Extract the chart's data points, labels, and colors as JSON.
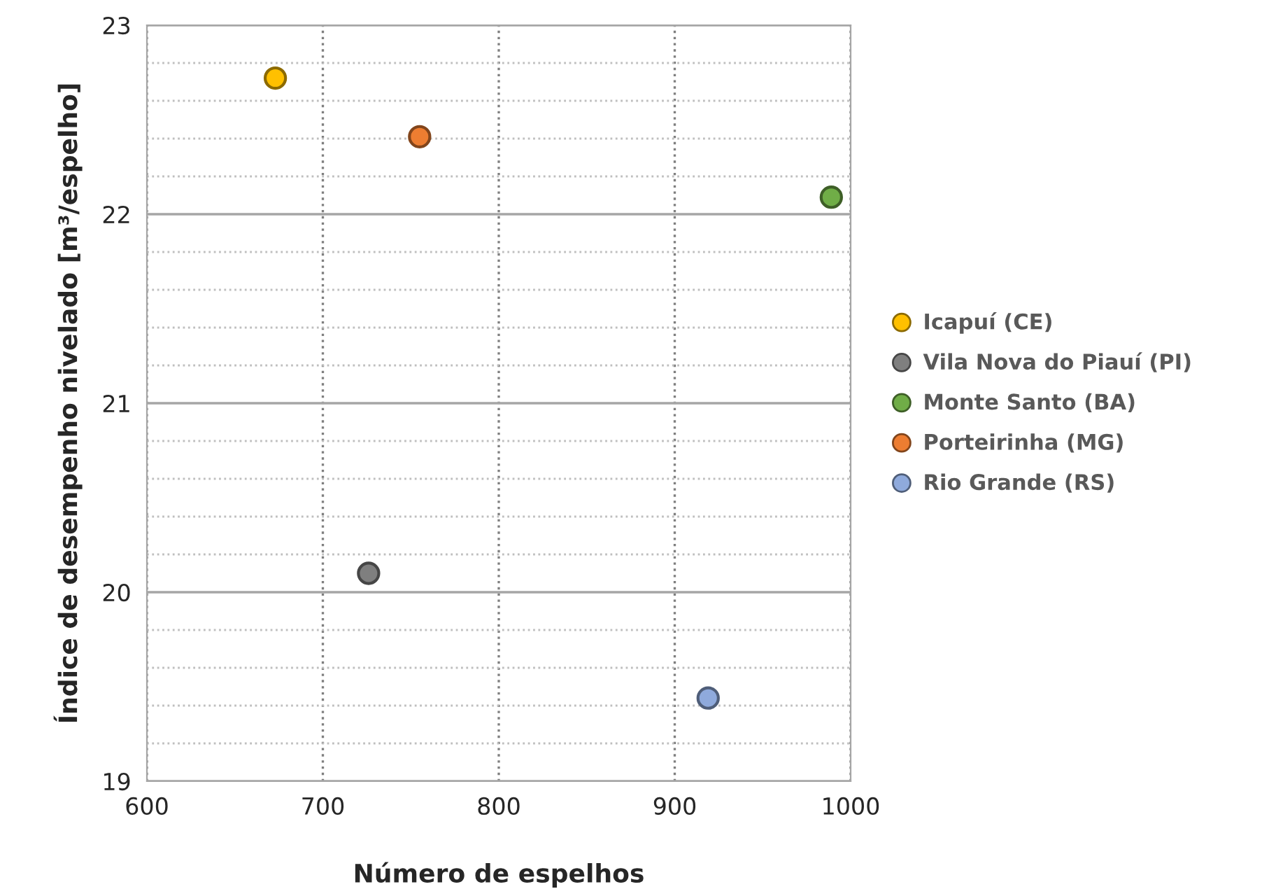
{
  "chart_data": {
    "type": "scatter",
    "xlabel": "Número de espelhos",
    "ylabel": "Índice de desempenho nivelado [m³/espelho]",
    "xlim": [
      600,
      1000
    ],
    "xticks": [
      600,
      700,
      800,
      900,
      1000
    ],
    "ylim": [
      19,
      23
    ],
    "yticks": [
      19,
      20,
      21,
      22,
      23
    ],
    "grid": true,
    "legend": "right",
    "marker": "circle",
    "series": [
      {
        "name": "Icapuí (CE)",
        "color": "#ffc000",
        "x": [
          673
        ],
        "values": [
          22.72
        ]
      },
      {
        "name": "Vila Nova do Piauí (PI)",
        "color": "#7f7f7f",
        "x": [
          726
        ],
        "values": [
          20.1
        ]
      },
      {
        "name": "Monte Santo (BA)",
        "color": "#70ad47",
        "x": [
          989
        ],
        "values": [
          22.09
        ]
      },
      {
        "name": "Porteirinha (MG)",
        "color": "#ed7d31",
        "x": [
          755
        ],
        "values": [
          22.41
        ]
      },
      {
        "name": "Rio Grande (RS)",
        "color": "#8faadc",
        "x": [
          919
        ],
        "values": [
          19.44
        ]
      }
    ]
  }
}
